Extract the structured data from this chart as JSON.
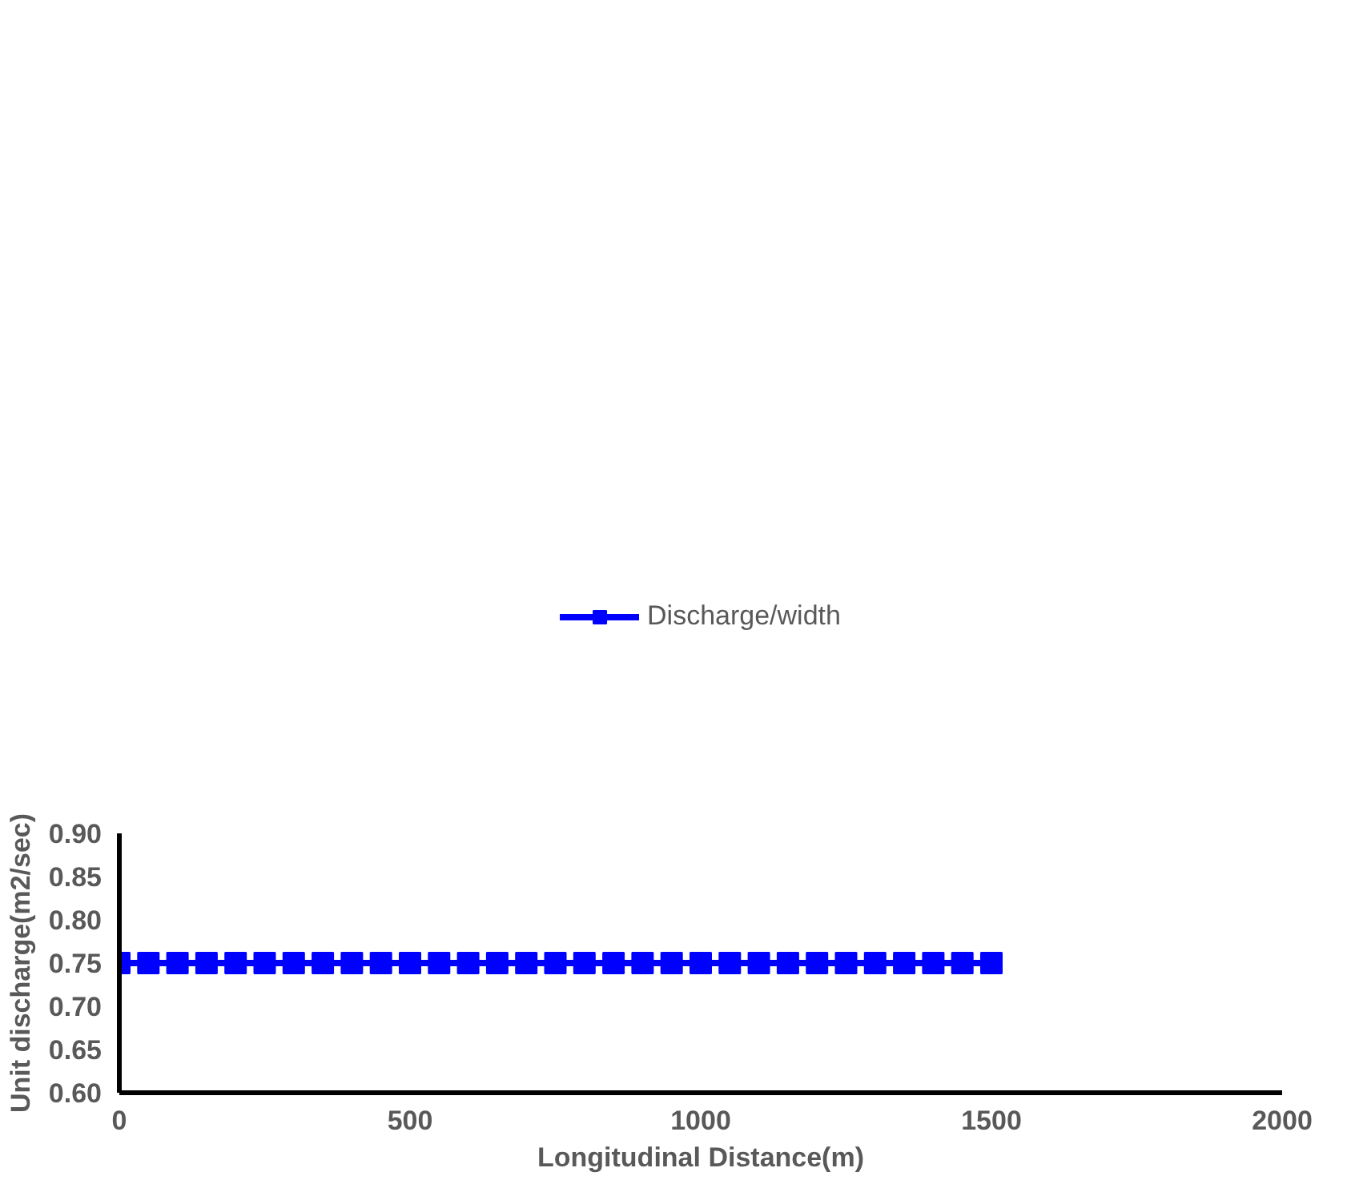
{
  "chart_data": {
    "type": "line",
    "xlabel": "Longitudinal Distance(m)",
    "ylabel": "Unit discharge(m2/sec)",
    "xlim": [
      0,
      2000
    ],
    "xticks": [
      0,
      500,
      1000,
      1500,
      2000
    ],
    "ylim": [
      0.6,
      0.9
    ],
    "yticks": [
      {
        "value": 0.6,
        "label": "0.60"
      },
      {
        "value": 0.65,
        "label": "0.65"
      },
      {
        "value": 0.7,
        "label": "0.70"
      },
      {
        "value": 0.75,
        "label": "0.75"
      },
      {
        "value": 0.8,
        "label": "0.80"
      },
      {
        "value": 0.85,
        "label": "0.85"
      },
      {
        "value": 0.9,
        "label": "0.90"
      }
    ],
    "x": [
      0,
      50,
      100,
      150,
      200,
      250,
      300,
      350,
      400,
      450,
      500,
      550,
      600,
      650,
      700,
      750,
      800,
      850,
      900,
      950,
      1000,
      1050,
      1100,
      1150,
      1200,
      1250,
      1300,
      1350,
      1400,
      1450,
      1500
    ],
    "series": [
      {
        "name": "Discharge/width",
        "color": "#0000ff",
        "values": [
          0.75,
          0.75,
          0.75,
          0.75,
          0.75,
          0.75,
          0.75,
          0.75,
          0.75,
          0.75,
          0.75,
          0.75,
          0.75,
          0.75,
          0.75,
          0.75,
          0.75,
          0.75,
          0.75,
          0.75,
          0.75,
          0.75,
          0.75,
          0.75,
          0.75,
          0.75,
          0.75,
          0.75,
          0.75,
          0.75,
          0.75
        ]
      }
    ],
    "marker": "square",
    "line_style": "solid",
    "grid": false,
    "legend": "top"
  }
}
